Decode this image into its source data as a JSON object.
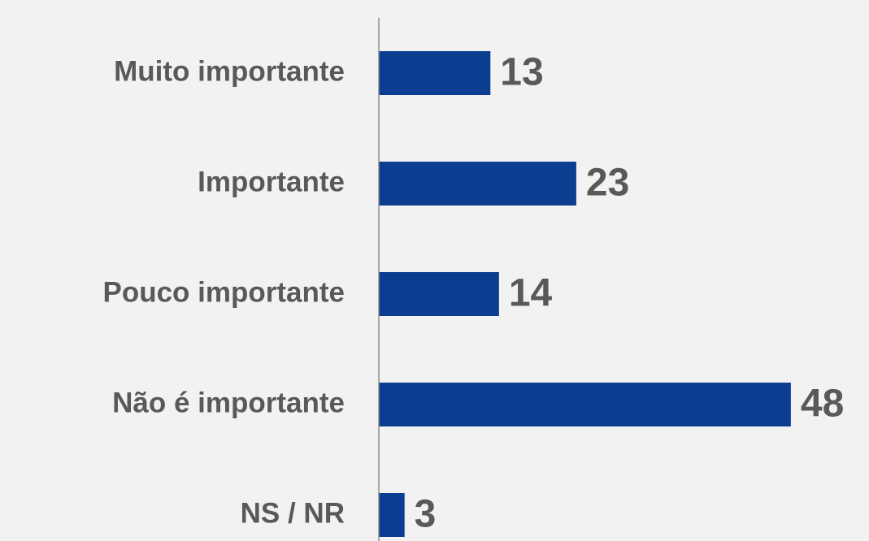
{
  "chart_data": {
    "type": "bar",
    "orientation": "horizontal",
    "categories": [
      "Muito importante",
      "Importante",
      "Pouco importante",
      "Não é importante",
      "NS / NR"
    ],
    "values": [
      13,
      23,
      14,
      48,
      3
    ],
    "color": "#0b3d91",
    "xlim": [
      0,
      50
    ]
  }
}
